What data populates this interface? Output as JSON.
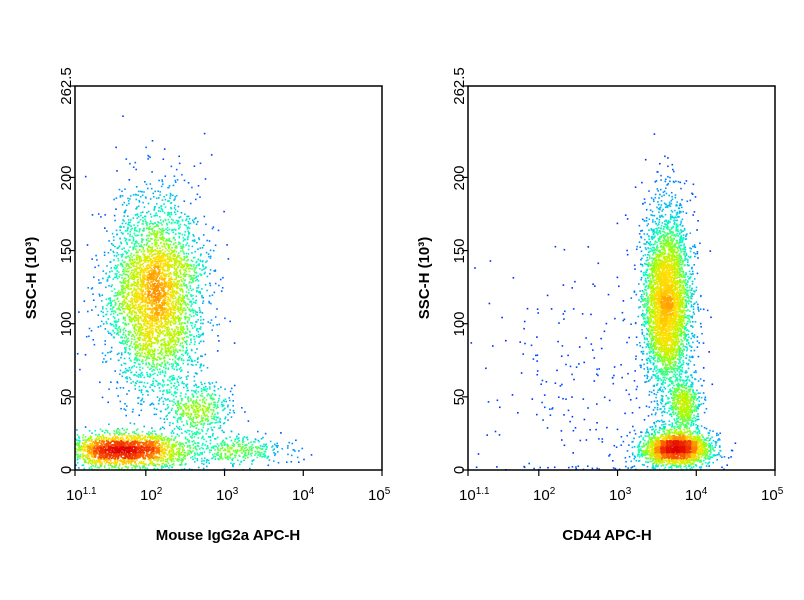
{
  "chart_data": [
    {
      "type": "scatter",
      "subtype": "flow-cytometry density dot plot",
      "xlabel": "Mouse IgG2a APC-H",
      "ylabel": "SSC-H (10³)",
      "x_scale": "log",
      "xlim": [
        12.6,
        100000
      ],
      "ylim": [
        0,
        262.5
      ],
      "x_ticks": [
        {
          "base": "10",
          "exp": "1.1",
          "value": 12.6
        },
        {
          "base": "10",
          "exp": "2",
          "value": 100
        },
        {
          "base": "10",
          "exp": "3",
          "value": 1000
        },
        {
          "base": "10",
          "exp": "4",
          "value": 10000
        },
        {
          "base": "10",
          "exp": "5",
          "value": 100000
        }
      ],
      "y_ticks": [
        "0",
        "50",
        "100",
        "150",
        "200",
        "262.5"
      ],
      "y_tick_values": [
        0,
        50,
        100,
        150,
        200,
        262.5
      ],
      "populations": [
        {
          "x_center": 130,
          "y_center": 120,
          "x_spread_log": 0.3,
          "y_spread": 32,
          "weight": 0.58
        },
        {
          "x_center": 450,
          "y_center": 42,
          "x_spread_log": 0.22,
          "y_spread": 10,
          "weight": 0.07
        },
        {
          "x_center": 55,
          "y_center": 14,
          "x_spread_log": 0.42,
          "y_spread": 6,
          "weight": 0.3
        },
        {
          "x_center": 1500,
          "y_center": 14,
          "x_spread_log": 0.35,
          "y_spread": 5,
          "weight": 0.05
        }
      ],
      "grid": false,
      "legend": "none"
    },
    {
      "type": "scatter",
      "subtype": "flow-cytometry density dot plot",
      "xlabel": "CD44 APC-H",
      "ylabel": "SSC-H (10³)",
      "x_scale": "log",
      "xlim": [
        12.6,
        100000
      ],
      "ylim": [
        0,
        262.5
      ],
      "x_ticks": [
        {
          "base": "10",
          "exp": "1.1",
          "value": 12.6
        },
        {
          "base": "10",
          "exp": "2",
          "value": 100
        },
        {
          "base": "10",
          "exp": "3",
          "value": 1000
        },
        {
          "base": "10",
          "exp": "4",
          "value": 10000
        },
        {
          "base": "10",
          "exp": "5",
          "value": 100000
        }
      ],
      "y_ticks": [
        "0",
        "50",
        "100",
        "150",
        "200",
        "262.5"
      ],
      "y_tick_values": [
        0,
        50,
        100,
        150,
        200,
        262.5
      ],
      "populations": [
        {
          "x_center": 4200,
          "y_center": 115,
          "x_spread_log": 0.15,
          "y_spread": 32,
          "weight": 0.58
        },
        {
          "x_center": 7000,
          "y_center": 45,
          "x_spread_log": 0.1,
          "y_spread": 10,
          "weight": 0.08
        },
        {
          "x_center": 5500,
          "y_center": 15,
          "x_spread_log": 0.22,
          "y_spread": 6,
          "weight": 0.31
        },
        {
          "x_center": 300,
          "y_center": 60,
          "x_spread_log": 0.6,
          "y_spread": 50,
          "weight": 0.03
        }
      ],
      "grid": false,
      "legend": "none"
    }
  ],
  "colormap": [
    "#0000ff",
    "#00a0ff",
    "#00ffc0",
    "#a0ff00",
    "#ffe000",
    "#ff6000",
    "#e00000"
  ]
}
